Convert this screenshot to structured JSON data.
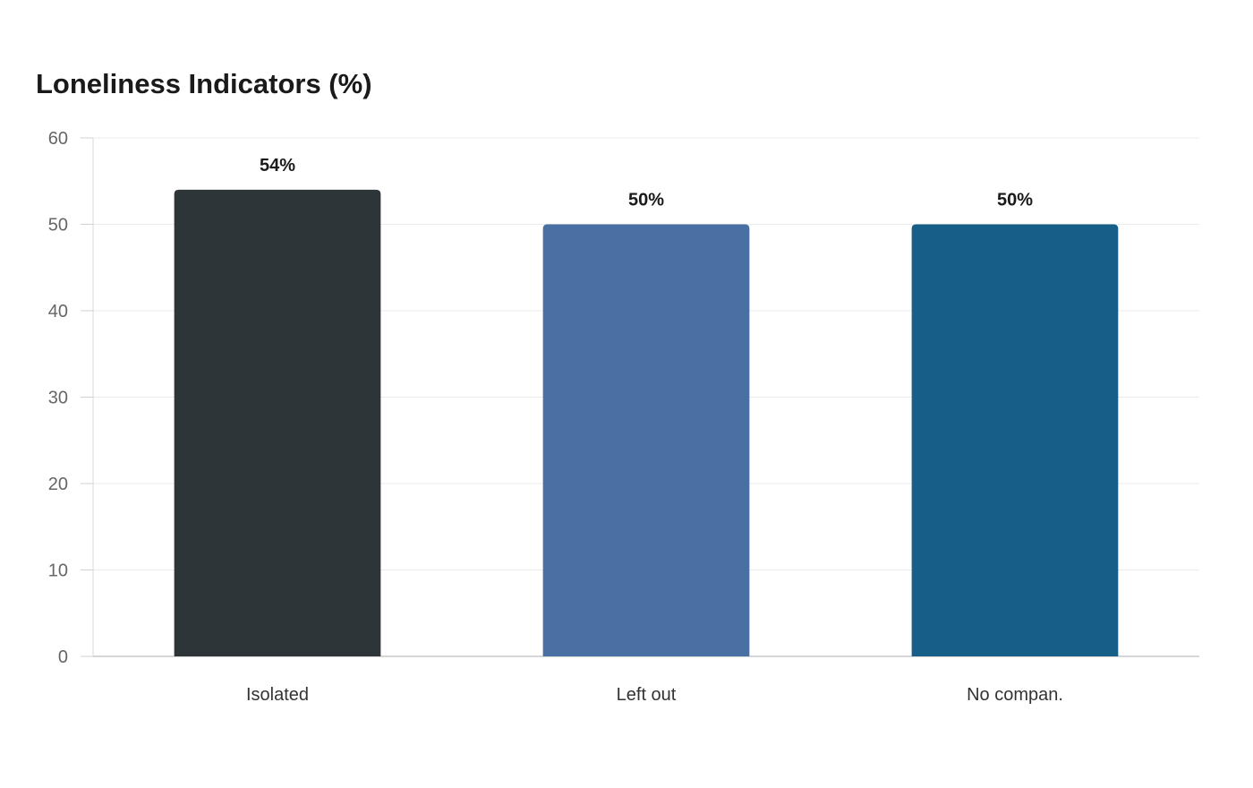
{
  "chart_data": {
    "type": "bar",
    "title": "Loneliness Indicators (%)",
    "xlabel": "",
    "ylabel": "",
    "categories": [
      "Isolated",
      "Left out",
      "No compan."
    ],
    "values": [
      54,
      50,
      50
    ],
    "data_labels": [
      "54%",
      "50%",
      "50%"
    ],
    "colors": [
      "#2e3538",
      "#4a6fa3",
      "#175f89"
    ],
    "ylim": [
      0,
      60
    ],
    "yticks": [
      0,
      10,
      20,
      30,
      40,
      50,
      60
    ],
    "grid": true,
    "legend": "none"
  }
}
